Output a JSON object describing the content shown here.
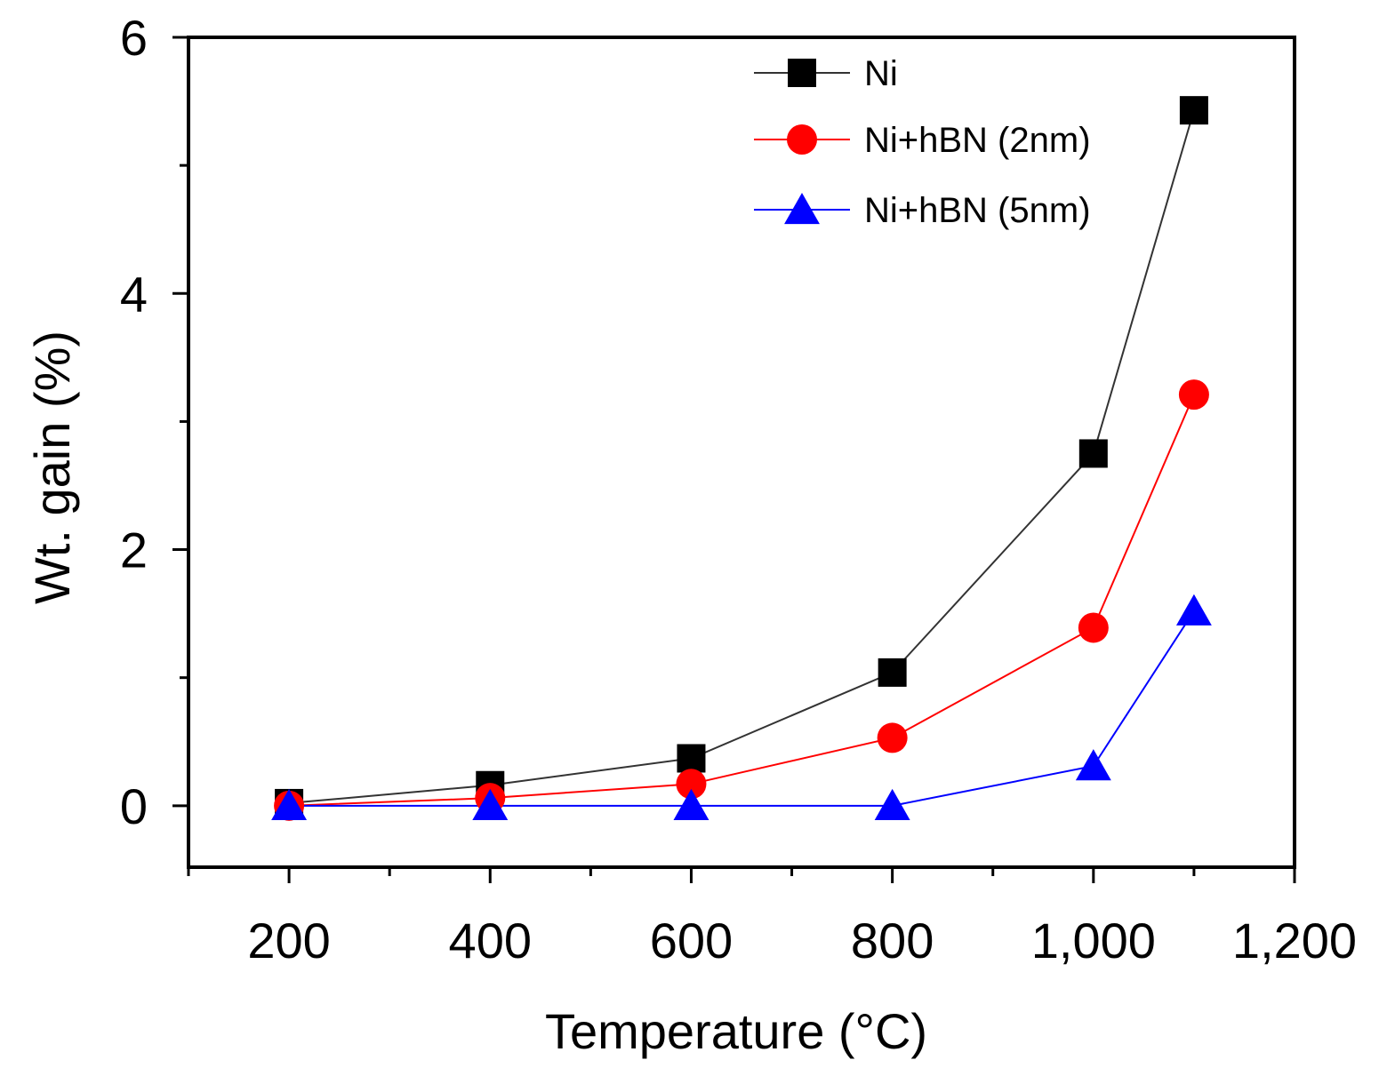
{
  "chart_data": {
    "type": "line",
    "title": "",
    "xlabel": "Temperature (°C)",
    "ylabel": "Wt. gain (%)",
    "xlim": [
      100,
      1200
    ],
    "ylim": [
      -0.48,
      6
    ],
    "x_ticks": [
      200,
      400,
      600,
      800,
      1000,
      1200
    ],
    "x_tick_labels": [
      "200",
      "400",
      "600",
      "800",
      "1,000",
      "1,200"
    ],
    "y_ticks": [
      0,
      2,
      4,
      6
    ],
    "y_tick_labels": [
      "0",
      "2",
      "4",
      "6"
    ],
    "legend_position": "top-right",
    "grid": false,
    "series": [
      {
        "name": "Ni",
        "marker": "square",
        "line_color": "#333333",
        "marker_color": "#000000",
        "x": [
          200,
          400,
          600,
          800,
          1000,
          1100
        ],
        "y": [
          0.02,
          0.16,
          0.37,
          1.04,
          2.75,
          5.43
        ]
      },
      {
        "name": "Ni+hBN (2nm)",
        "marker": "circle",
        "line_color": "#ff0000",
        "marker_color": "#ff0000",
        "x": [
          200,
          400,
          600,
          800,
          1000,
          1100
        ],
        "y": [
          0.0,
          0.06,
          0.17,
          0.53,
          1.39,
          3.21
        ]
      },
      {
        "name": "Ni+hBN (5nm)",
        "marker": "triangle",
        "line_color": "#0000ff",
        "marker_color": "#0000ff",
        "x": [
          200,
          400,
          600,
          800,
          1000,
          1100
        ],
        "y": [
          0.0,
          0.0,
          0.0,
          0.0,
          0.31,
          1.52
        ]
      }
    ]
  }
}
